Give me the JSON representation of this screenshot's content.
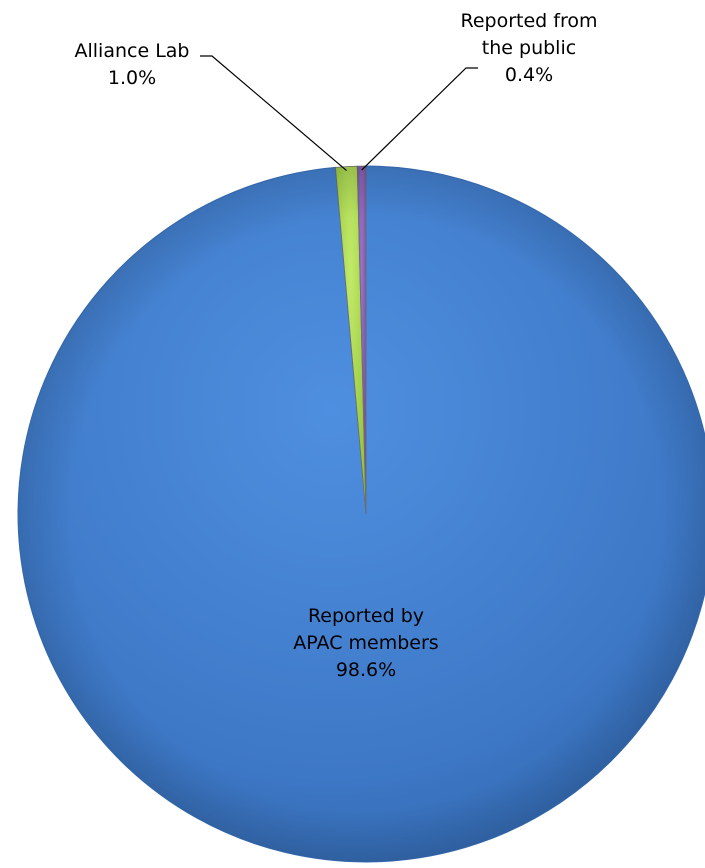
{
  "chart_data": {
    "type": "pie",
    "title": "",
    "slices": [
      {
        "label_lines": [
          "Reported by",
          "APAC members"
        ],
        "pct_text": "98.6%",
        "value": 98.6,
        "color": "#4682d4"
      },
      {
        "label_lines": [
          "Alliance Lab"
        ],
        "pct_text": "1.0%",
        "value": 1.0,
        "color": "#a6d645"
      },
      {
        "label_lines": [
          "Reported from",
          "the public"
        ],
        "pct_text": "0.4%",
        "value": 0.4,
        "color": "#7b57a8"
      }
    ],
    "legend": "none",
    "labels": "data labels with leader lines for small slices"
  }
}
